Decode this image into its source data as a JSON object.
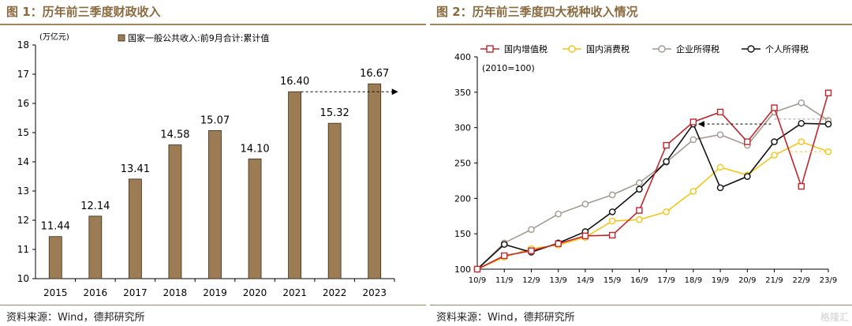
{
  "colors": {
    "title": "#8b6a3e",
    "bar": "#9c7c55",
    "bar_edge": "#3b2a14",
    "rule": "#a08658"
  },
  "left": {
    "title": "图 1：历年前三季度财政收入",
    "source": "资料来源：Wind，德邦研究所"
  },
  "right": {
    "title": "图 2：历年前三季度四大税种收入情况",
    "source": "资料来源：Wind，德邦研究所"
  },
  "watermark": "格隆汇",
  "chart_data": [
    {
      "type": "bar",
      "unit_label": "(万亿元)",
      "legend": [
        "国家一般公共收入:前9月合计:累计值"
      ],
      "categories": [
        "2015",
        "2016",
        "2017",
        "2018",
        "2019",
        "2020",
        "2021",
        "2022",
        "2023"
      ],
      "values": [
        11.44,
        12.14,
        13.41,
        14.58,
        15.07,
        14.1,
        16.4,
        15.32,
        16.67
      ],
      "value_labels": [
        "11.44",
        "12.14",
        "13.41",
        "14.58",
        "15.07",
        "14.10",
        "16.40",
        "15.32",
        "16.67"
      ],
      "ylim": [
        10,
        18
      ],
      "yticks": [
        10,
        11,
        12,
        13,
        14,
        15,
        16,
        17,
        18
      ],
      "annotation": {
        "type": "dashed-arrow",
        "from": "2021",
        "to": "2023",
        "value": 16.4
      },
      "grid": false,
      "legend_position": "top"
    },
    {
      "type": "line",
      "note": "(2010=100)",
      "x": [
        "10/9",
        "11/9",
        "12/9",
        "13/9",
        "14/9",
        "15/9",
        "16/9",
        "17/9",
        "18/9",
        "19/9",
        "20/9",
        "21/9",
        "22/9",
        "23/9"
      ],
      "ylim": [
        100,
        400
      ],
      "yticks": [
        100,
        150,
        200,
        250,
        300,
        350,
        400
      ],
      "series": [
        {
          "name": "国内增值税",
          "color": "#c0272d",
          "marker": "square",
          "values": [
            100,
            119,
            126,
            136,
            147,
            148,
            183,
            275,
            308,
            322,
            280,
            328,
            217,
            349
          ]
        },
        {
          "name": "国内消费税",
          "color": "#f5c518",
          "marker": "circle",
          "values": [
            100,
            117,
            129,
            134,
            145,
            168,
            170,
            181,
            210,
            244,
            233,
            261,
            280,
            266
          ]
        },
        {
          "name": "企业所得税",
          "color": "#a39a8f",
          "marker": "circle",
          "values": [
            100,
            137,
            156,
            178,
            192,
            205,
            222,
            251,
            283,
            290,
            275,
            322,
            335,
            310
          ]
        },
        {
          "name": "个人所得税",
          "color": "#111111",
          "marker": "circle",
          "values": [
            100,
            135,
            124,
            137,
            153,
            181,
            213,
            252,
            305,
            215,
            231,
            280,
            306,
            305
          ]
        }
      ],
      "annotation": {
        "type": "dashed-arrow",
        "from": "21/9",
        "to": "18/9",
        "value": 305
      },
      "grid": false,
      "legend_position": "top"
    }
  ]
}
